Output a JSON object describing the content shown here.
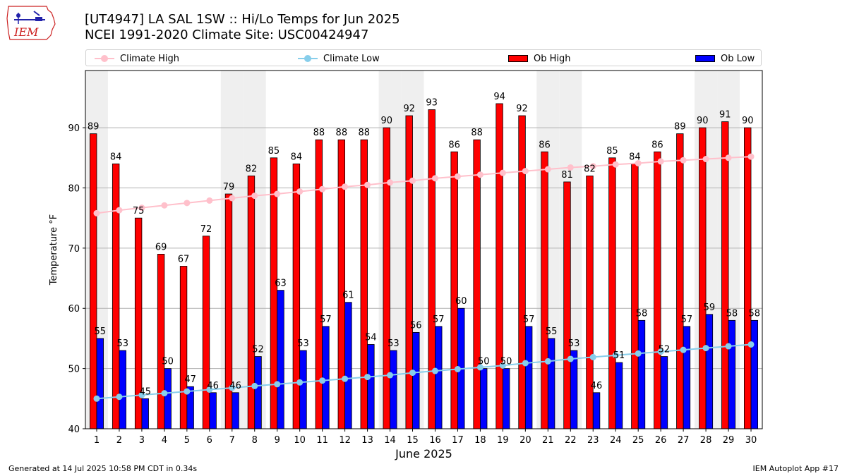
{
  "header": {
    "title_line1": "[UT4947] LA SAL 1SW :: Hi/Lo Temps for Jun 2025",
    "title_line2": "NCEI 1991-2020 Climate Site: USC00424947",
    "logo_text": "IEM"
  },
  "legend": {
    "climate_high": "Climate High",
    "climate_low": "Climate Low",
    "ob_high": "Ob High",
    "ob_low": "Ob Low"
  },
  "footer": {
    "left": "Generated at 14 Jul 2025 10:58 PM CDT in 0.34s",
    "right": "IEM Autoplot App #17"
  },
  "colors": {
    "ob_high": "#ff0000",
    "ob_low": "#0000ff",
    "climate_high": "#ffc0cb",
    "climate_low": "#87ceeb",
    "weekend_band": "#efefef"
  },
  "chart_data": {
    "type": "bar",
    "xlabel": "June 2025",
    "ylabel": "Temperature °F",
    "ylim": [
      40,
      99.5
    ],
    "yticks": [
      40,
      50,
      60,
      70,
      80,
      90
    ],
    "grid": true,
    "legend_position": "top",
    "categories": [
      1,
      2,
      3,
      4,
      5,
      6,
      7,
      8,
      9,
      10,
      11,
      12,
      13,
      14,
      15,
      16,
      17,
      18,
      19,
      20,
      21,
      22,
      23,
      24,
      25,
      26,
      27,
      28,
      29,
      30
    ],
    "shaded_days": [
      1,
      7,
      8,
      14,
      15,
      21,
      22,
      28,
      29
    ],
    "series": [
      {
        "name": "Ob High",
        "kind": "bar",
        "values": [
          89,
          84,
          75,
          69,
          67,
          72,
          79,
          82,
          85,
          84,
          88,
          88,
          88,
          90,
          92,
          93,
          86,
          88,
          94,
          92,
          86,
          81,
          82,
          85,
          84,
          86,
          89,
          90,
          91,
          90
        ]
      },
      {
        "name": "Ob Low",
        "kind": "bar",
        "values": [
          55,
          53,
          45,
          50,
          47,
          46,
          46,
          52,
          63,
          53,
          57,
          61,
          54,
          53,
          56,
          57,
          60,
          50,
          50,
          57,
          55,
          53,
          46,
          51,
          58,
          52,
          57,
          59,
          58,
          58
        ]
      },
      {
        "name": "Climate High",
        "kind": "line",
        "values": [
          75.8,
          76.3,
          76.7,
          77.1,
          77.5,
          77.9,
          78.3,
          78.7,
          79.0,
          79.4,
          79.8,
          80.2,
          80.5,
          80.9,
          81.2,
          81.6,
          81.9,
          82.2,
          82.5,
          82.8,
          83.1,
          83.4,
          83.6,
          83.9,
          84.1,
          84.4,
          84.6,
          84.8,
          85.0,
          85.2
        ]
      },
      {
        "name": "Climate Low",
        "kind": "line",
        "values": [
          45.0,
          45.3,
          45.6,
          45.9,
          46.2,
          46.5,
          46.8,
          47.1,
          47.4,
          47.7,
          48.0,
          48.3,
          48.6,
          48.9,
          49.3,
          49.6,
          49.9,
          50.2,
          50.5,
          50.9,
          51.2,
          51.6,
          51.9,
          52.2,
          52.5,
          52.8,
          53.1,
          53.4,
          53.7,
          54.0
        ]
      }
    ]
  }
}
